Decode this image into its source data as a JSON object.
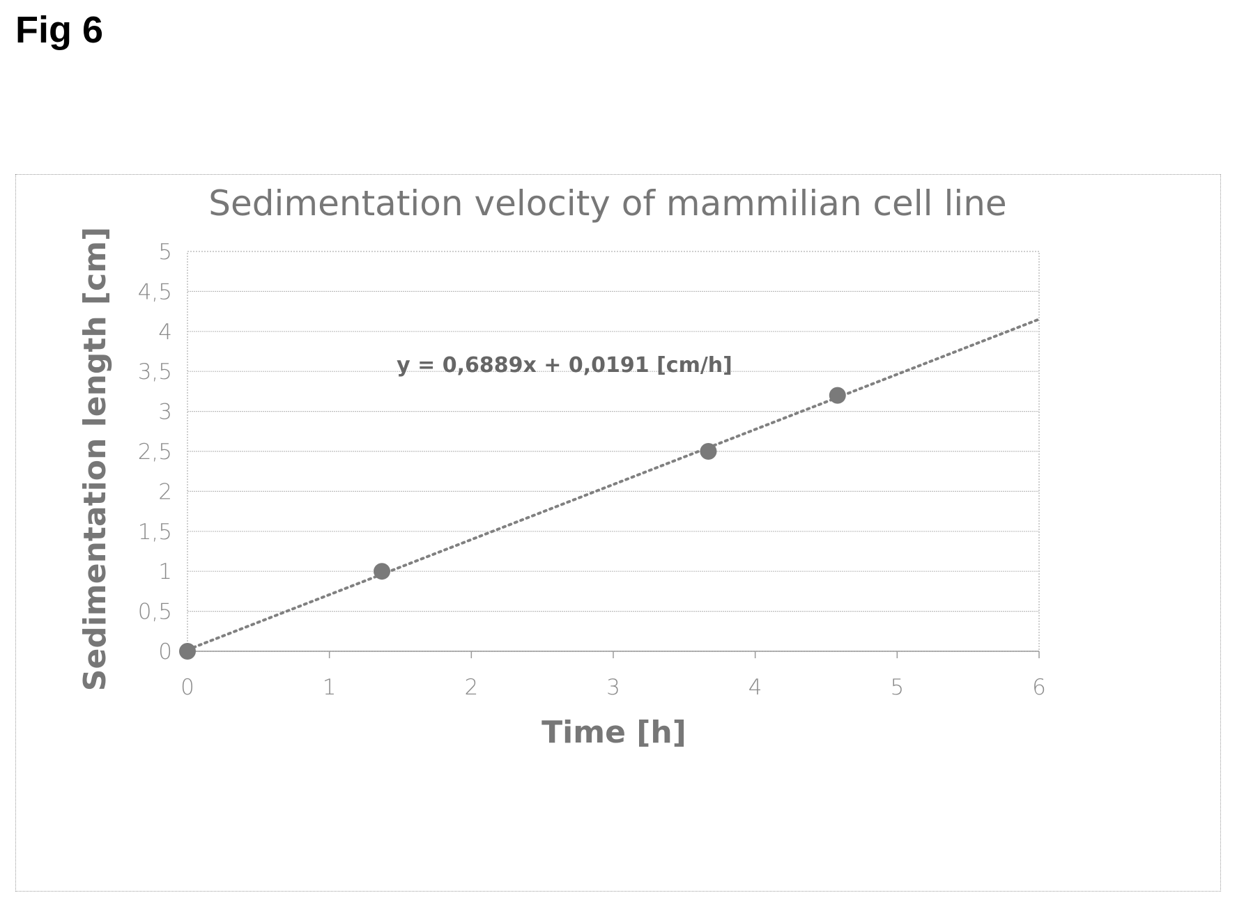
{
  "figure": {
    "label": "Fig 6"
  },
  "chart_data": {
    "type": "scatter",
    "title": "Sedimentation velocity of mammilian cell line",
    "xlabel": "Time [h]",
    "ylabel": "Sedimentation length [cm]",
    "xlim": [
      0,
      6
    ],
    "ylim": [
      0,
      5
    ],
    "x_ticks": [
      "0",
      "1",
      "2",
      "3",
      "4",
      "5",
      "6"
    ],
    "y_ticks": [
      "0",
      "0,5",
      "1",
      "1,5",
      "2",
      "2,5",
      "3",
      "3,5",
      "4",
      "4,5",
      "5"
    ],
    "grid": "horizontal",
    "series": [
      {
        "x": [
          0,
          1.37,
          3.67,
          4.58
        ],
        "y": [
          0,
          1.0,
          2.5,
          3.2
        ]
      }
    ],
    "trendline": {
      "type": "linear",
      "slope": 0.6889,
      "intercept": 0.0191,
      "equation_label": "y = 0,6889x + 0,0191 [cm/h]"
    },
    "colors": {
      "point": "#7a7a7a",
      "trendline": "#808080",
      "grid": "#bdbdbd"
    }
  }
}
